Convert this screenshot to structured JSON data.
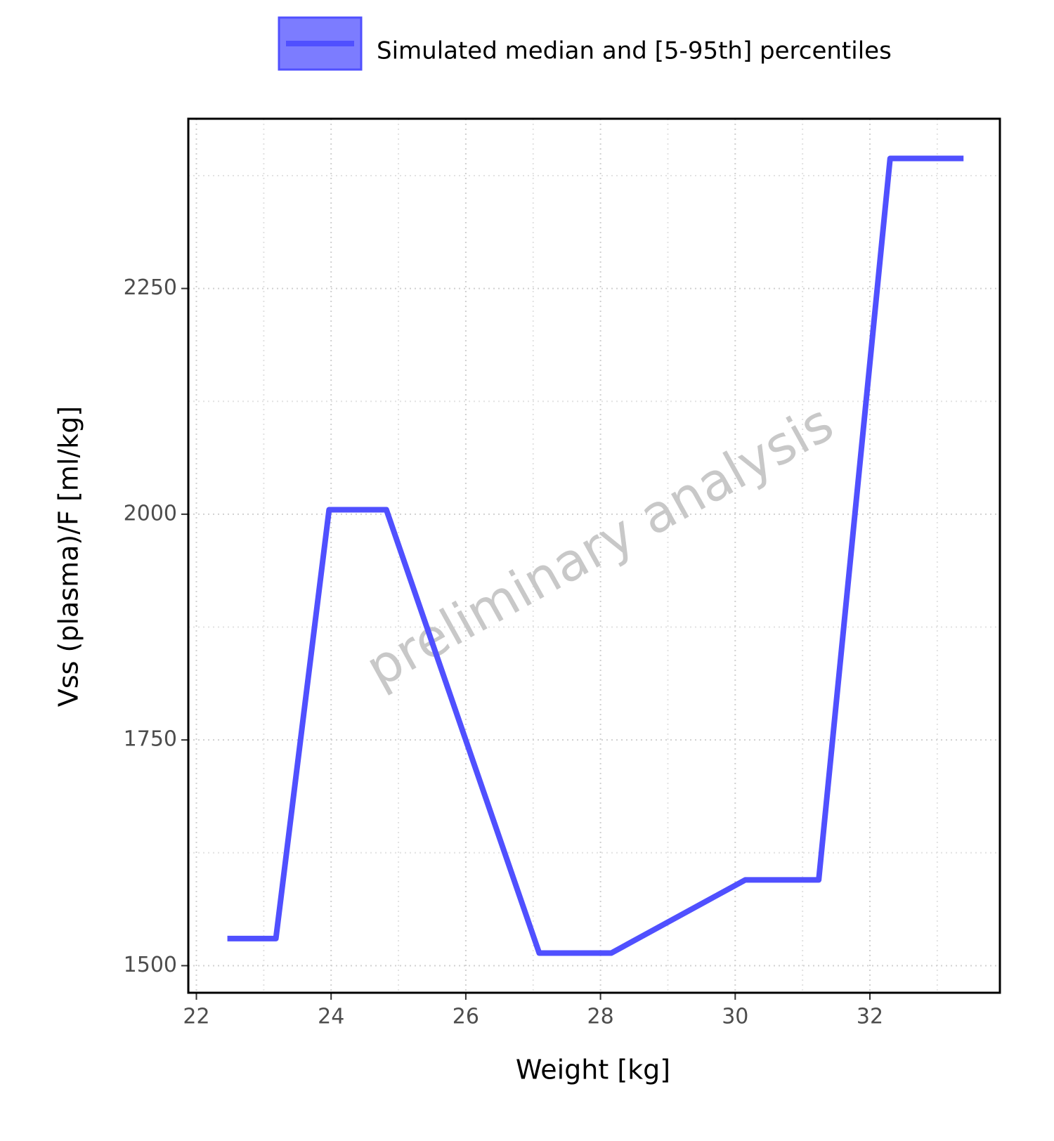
{
  "chart_data": {
    "type": "line",
    "x_label": "Weight [kg]",
    "y_label": "Vss (plasma)/F [ml/kg]",
    "annotation": "preliminary analysis",
    "legend": "top",
    "grid": true,
    "minor_grid": true,
    "x": [
      22.46,
      23.18,
      23.97,
      24.82,
      27.09,
      28.16,
      30.15,
      31.24,
      32.3,
      33.39
    ],
    "series": [
      {
        "name": "Simulated median and [5-95th] percentiles",
        "color": "#5050ff",
        "values": [
          1530,
          1530,
          2005,
          2005,
          1514,
          1514,
          1595,
          1595,
          2394,
          2394
        ]
      }
    ],
    "xlim": [
      21.88,
      33.93
    ],
    "xticks": [
      22,
      24,
      26,
      28,
      30,
      32
    ],
    "ylim": [
      1470,
      2438
    ],
    "yticks": [
      1500,
      1750,
      2000,
      2250
    ]
  }
}
